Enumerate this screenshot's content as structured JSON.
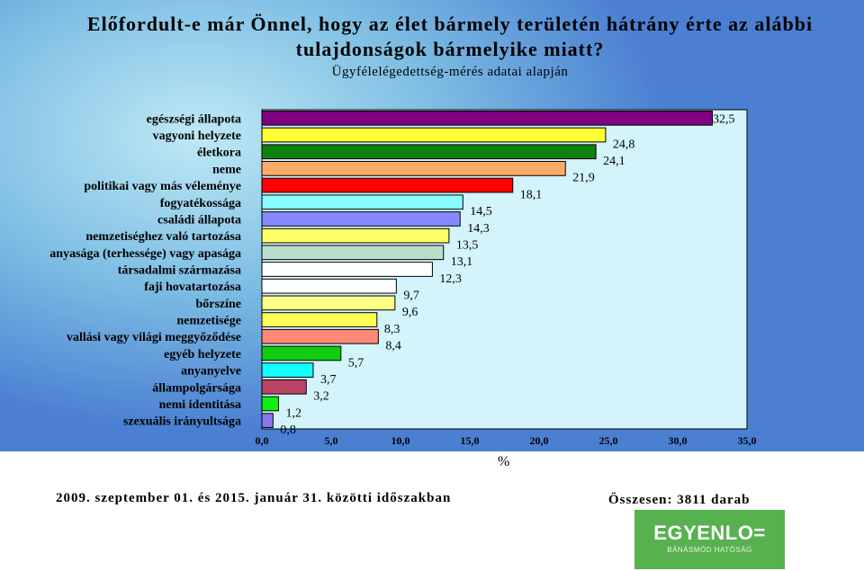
{
  "title_line1": "Előfordult-e már Önnel, hogy az élet bármely területén hátrány érte az alábbi",
  "title_line2": "tulajdonságok bármelyike miatt?",
  "subtitle": "Ügyfélelégedettség-mérés adatai alapján",
  "footer_period": "2009. szeptember 01. és 2015. január 31. közötti időszakban",
  "footer_total": "Összesen: 3811 darab",
  "logo": {
    "name": "EGYENLO=",
    "tagline": "BÁNÁSMÓD HATÓSÁG"
  },
  "chart_data": {
    "type": "bar",
    "orientation": "horizontal",
    "xlabel": "%",
    "xlim": [
      0,
      35
    ],
    "x_ticks": [
      "0,0",
      "5,0",
      "10,0",
      "15,0",
      "20,0",
      "25,0",
      "30,0",
      "35,0"
    ],
    "categories": [
      "egészségi állapota",
      "vagyoni helyzete",
      "életkora",
      "neme",
      "politikai vagy más véleménye",
      "fogyatékossága",
      "családi állapota",
      "nemzetiséghez való tartozása",
      "anyasága (terhessége) vagy apasága",
      "társadalmi származása",
      "faji hovatartozása",
      "bőrszíne",
      "nemzetisége",
      "vallási vagy világi meggyőződése",
      "egyéb helyzete",
      "anyanyelve",
      "állampolgársága",
      "nemi identitása",
      "szexuális irányultsága"
    ],
    "values": [
      32.5,
      24.8,
      24.1,
      21.9,
      18.1,
      14.5,
      14.3,
      13.5,
      13.1,
      12.3,
      9.7,
      9.6,
      8.3,
      8.4,
      5.7,
      3.7,
      3.2,
      1.2,
      0.8
    ],
    "value_labels": [
      "32,5",
      "24,8",
      "24,1",
      "21,9",
      "18,1",
      "14,5",
      "14,3",
      "13,5",
      "13,1",
      "12,3",
      "9,7",
      "9,6",
      "8,3",
      "8,4",
      "5,7",
      "3,7",
      "3,2",
      "1,2",
      "0,8"
    ],
    "colors": [
      "#800080",
      "#ffff33",
      "#108010",
      "#ffaa66",
      "#ff0000",
      "#88ffff",
      "#8888ff",
      "#ffff66",
      "#bbddcc",
      "#ffffff",
      "#ffffff",
      "#ffff88",
      "#ffff55",
      "#ff8877",
      "#11cc11",
      "#11ffff",
      "#bb4466",
      "#11ee11",
      "#8877ee"
    ],
    "plot_background": "#d4f4fc"
  }
}
